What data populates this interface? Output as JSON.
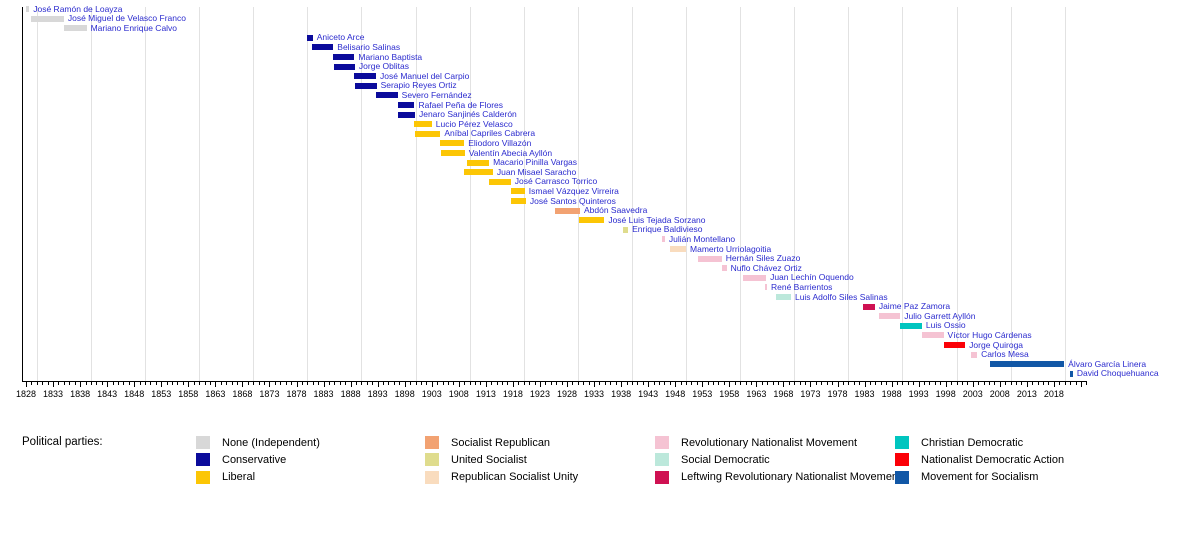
{
  "chart_data": {
    "type": "timeline",
    "description": "Gantt-style timeline of office holders colored by political party",
    "legend_title": "Political parties:",
    "name_label_color": "#2b2bce",
    "x_axis": {
      "min_year": 1828,
      "max_year": 2024,
      "tick_interval_years": 1,
      "label_interval_years": 5,
      "tick_labels": [
        "1828",
        "1833",
        "1838",
        "1843",
        "1848",
        "1853",
        "1858",
        "1863",
        "1868",
        "1873",
        "1878",
        "1883",
        "1888",
        "1893",
        "1898",
        "1903",
        "1908",
        "1913",
        "1918",
        "1923",
        "1928",
        "1933",
        "1938",
        "1943",
        "1948",
        "1953",
        "1958",
        "1963",
        "1968",
        "1973",
        "1978",
        "1983",
        "1988",
        "1993",
        "1998",
        "2003",
        "2008",
        "2013",
        "2018"
      ],
      "gridline_years": [
        1830,
        1840,
        1850,
        1860,
        1870,
        1880,
        1890,
        1900,
        1910,
        1920,
        1930,
        1940,
        1950,
        1960,
        1970,
        1980,
        1990,
        2000,
        2010,
        2020
      ],
      "grid": true
    },
    "parties": {
      "none": {
        "label": "None (Independent)",
        "color": "#d8d8d8"
      },
      "conservative": {
        "label": "Conservative",
        "color": "#0b0b9b"
      },
      "liberal": {
        "label": "Liberal",
        "color": "#fcc605"
      },
      "socialist_republican": {
        "label": "Socialist Republican",
        "color": "#f2a272"
      },
      "united_socialist": {
        "label": "United Socialist",
        "color": "#dfdc8d"
      },
      "republican_socialist_unity": {
        "label": "Republican Socialist Unity",
        "color": "#f9dcbe"
      },
      "rnm": {
        "label": "Revolutionary Nationalist Movement",
        "color": "#f5c3d3"
      },
      "social_democratic": {
        "label": "Social Democratic",
        "color": "#bce8db"
      },
      "leftwing_rnm": {
        "label": "Leftwing Revolutionary Nationalist Movement",
        "color": "#cf1152"
      },
      "christian_democratic": {
        "label": "Christian Democratic",
        "color": "#00c5bf"
      },
      "nda": {
        "label": "Nationalist Democratic Action",
        "color": "#fb0007"
      },
      "mas": {
        "label": "Movement for Socialism",
        "color": "#1157a6"
      }
    },
    "legend_columns": [
      [
        "none",
        "conservative",
        "liberal"
      ],
      [
        "socialist_republican",
        "united_socialist",
        "republican_socialist_unity"
      ],
      [
        "rnm",
        "social_democratic",
        "leftwing_rnm"
      ],
      [
        "christian_democratic",
        "nda",
        "mas"
      ]
    ],
    "entries": [
      {
        "name": "José Ramón de Loayza",
        "party": "none",
        "start": 1828.0,
        "end": 1828.6
      },
      {
        "name": "José Miguel de Velasco Franco",
        "party": "none",
        "start": 1829.0,
        "end": 1835.0
      },
      {
        "name": "Mariano Enrique Calvo",
        "party": "none",
        "start": 1835.0,
        "end": 1839.2
      },
      {
        "name": "Aniceto Arce",
        "party": "conservative",
        "start": 1880.0,
        "end": 1881.0
      },
      {
        "name": "Belisario Salinas",
        "party": "conservative",
        "start": 1880.9,
        "end": 1884.8
      },
      {
        "name": "Mariano Baptista",
        "party": "conservative",
        "start": 1884.8,
        "end": 1888.7
      },
      {
        "name": "Jorge Oblitas",
        "party": "conservative",
        "start": 1884.9,
        "end": 1888.8
      },
      {
        "name": "José Manuel del Carpio",
        "party": "conservative",
        "start": 1888.7,
        "end": 1892.7
      },
      {
        "name": "Serapio Reyes Ortiz",
        "party": "conservative",
        "start": 1888.8,
        "end": 1892.8
      },
      {
        "name": "Severo Fernández",
        "party": "conservative",
        "start": 1892.7,
        "end": 1896.7
      },
      {
        "name": "Rafael Peña de Flores",
        "party": "conservative",
        "start": 1896.7,
        "end": 1899.8
      },
      {
        "name": "Jenaro Sanjinés Calderón",
        "party": "conservative",
        "start": 1896.8,
        "end": 1899.9
      },
      {
        "name": "Lucio Pérez Velasco",
        "party": "liberal",
        "start": 1899.8,
        "end": 1903.0
      },
      {
        "name": "Aníbal Capriles Cabrera",
        "party": "liberal",
        "start": 1899.9,
        "end": 1904.6
      },
      {
        "name": "Eliodoro Villazón",
        "party": "liberal",
        "start": 1904.6,
        "end": 1909.0
      },
      {
        "name": "Valentín Abecia Ayllón",
        "party": "liberal",
        "start": 1904.7,
        "end": 1909.1
      },
      {
        "name": "Macario Pinilla Vargas",
        "party": "liberal",
        "start": 1909.6,
        "end": 1913.6
      },
      {
        "name": "Juan Misael Saracho",
        "party": "liberal",
        "start": 1909.0,
        "end": 1914.3
      },
      {
        "name": "José Carrasco Torrico",
        "party": "liberal",
        "start": 1913.6,
        "end": 1917.6
      },
      {
        "name": "Ismael Vázquez Virreira",
        "party": "liberal",
        "start": 1917.6,
        "end": 1920.2
      },
      {
        "name": "José Santos Quinteros",
        "party": "liberal",
        "start": 1917.7,
        "end": 1920.4
      },
      {
        "name": "Abdón Saavedra",
        "party": "socialist_republican",
        "start": 1925.7,
        "end": 1930.4
      },
      {
        "name": "José Luis Tejada Sorzano",
        "party": "liberal",
        "start": 1930.2,
        "end": 1934.9
      },
      {
        "name": "Enrique Baldivieso",
        "party": "united_socialist",
        "start": 1938.4,
        "end": 1939.3
      },
      {
        "name": "Julián Montellano",
        "party": "rnm",
        "start": 1945.5,
        "end": 1946.1
      },
      {
        "name": "Mamerto Urriolagoitia",
        "party": "republican_socialist_unity",
        "start": 1947.0,
        "end": 1950.0
      },
      {
        "name": "Hernán Siles Zuazo",
        "party": "rnm",
        "start": 1952.3,
        "end": 1956.6
      },
      {
        "name": "Nuflo Chávez Ortiz",
        "party": "rnm",
        "start": 1956.6,
        "end": 1957.5
      },
      {
        "name": "Juan Lechín Oquendo",
        "party": "rnm",
        "start": 1960.6,
        "end": 1964.8
      },
      {
        "name": "René Barrientos",
        "party": "rnm",
        "start": 1964.6,
        "end": 1964.9
      },
      {
        "name": "Luis Adolfo Siles Salinas",
        "party": "social_democratic",
        "start": 1966.6,
        "end": 1969.4
      },
      {
        "name": "Jaime Paz Zamora",
        "party": "leftwing_rnm",
        "start": 1982.8,
        "end": 1984.9
      },
      {
        "name": "Julio Garrett Ayllón",
        "party": "rnm",
        "start": 1985.6,
        "end": 1989.6
      },
      {
        "name": "Luis Ossio",
        "party": "christian_democratic",
        "start": 1989.6,
        "end": 1993.6
      },
      {
        "name": "Víctor Hugo Cárdenas",
        "party": "rnm",
        "start": 1993.6,
        "end": 1997.6
      },
      {
        "name": "Jorge Quiroga",
        "party": "nda",
        "start": 1997.6,
        "end": 2001.6
      },
      {
        "name": "Carlos Mesa",
        "party": "rnm",
        "start": 2002.6,
        "end": 2003.8
      },
      {
        "name": "Álvaro García Linera",
        "party": "mas",
        "start": 2006.1,
        "end": 2019.9
      },
      {
        "name": "David Choquehuanca",
        "party": "mas",
        "start": 2020.9,
        "end": 2021.5
      }
    ]
  }
}
